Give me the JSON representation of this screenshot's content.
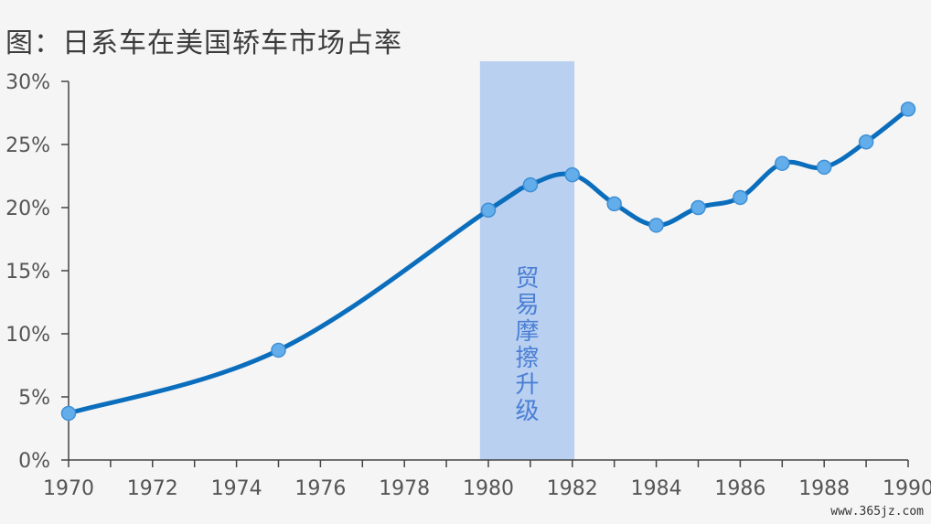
{
  "title": "图：日系车在美国轿车市场占率",
  "watermark": "www.365jz.com",
  "colors": {
    "line": "#0b6ebd",
    "marker": "#63aeea",
    "marker_stroke": "#3e8fd6",
    "band": "#b9d0f1",
    "band_text": "#4a7fd4",
    "axis": "#444444"
  },
  "chart_data": {
    "type": "line",
    "title": "图：日系车在美国轿车市场占率",
    "xlabel": "",
    "ylabel": "",
    "xlim": [
      1970,
      1990
    ],
    "ylim": [
      0,
      30
    ],
    "x_ticks": [
      "1970",
      "1972",
      "1974",
      "1976",
      "1978",
      "1980",
      "1982",
      "1984",
      "1986",
      "1988",
      "1990"
    ],
    "y_ticks": [
      "0%",
      "5%",
      "10%",
      "15%",
      "20%",
      "25%",
      "30%"
    ],
    "grid": false,
    "series": [
      {
        "x": [
          1970,
          1975,
          1980,
          1981,
          1982,
          1983,
          1984,
          1985,
          1986,
          1987,
          1988,
          1989,
          1990
        ],
        "values": [
          3.7,
          8.7,
          19.8,
          21.8,
          22.6,
          20.3,
          18.6,
          20.0,
          20.8,
          23.5,
          23.2,
          25.2,
          27.8
        ]
      }
    ],
    "annotations": [
      {
        "type": "band",
        "x_range": [
          1979.8,
          1982.05
        ],
        "text": "贸易摩擦升级"
      }
    ]
  }
}
